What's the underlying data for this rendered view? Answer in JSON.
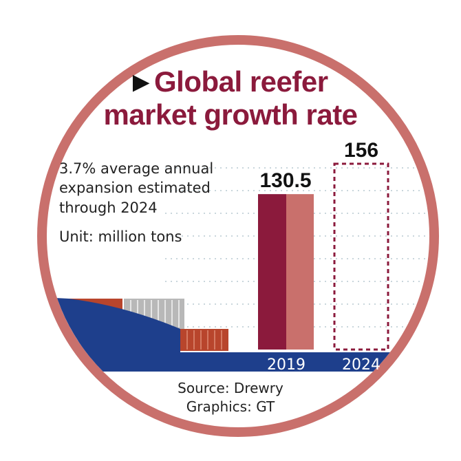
{
  "title": {
    "line1": "Global reefer",
    "line2": "market growth rate"
  },
  "notes": {
    "line1": "3.7% average annual",
    "line2": "expansion estimated",
    "line3": "through 2024",
    "unit": "Unit: million tons"
  },
  "source": {
    "line1": "Source: Drewry",
    "line2": "Graphics: GT"
  },
  "colors": {
    "ring": "#c9706c",
    "title": "#8b1a3c",
    "bar_dark": "#8b1a3c",
    "bar_light": "#c9706c",
    "ship_hull": "#1e3f8c",
    "container_red": "#b8452c",
    "container_gray": "#b3b3b3",
    "text": "#222222"
  },
  "chart_data": {
    "type": "bar",
    "categories": [
      "2019",
      "2024"
    ],
    "values": [
      130.5,
      156
    ],
    "data_labels": [
      "130.5",
      "156"
    ],
    "projected": [
      false,
      true
    ],
    "ylim": [
      0,
      156
    ]
  }
}
